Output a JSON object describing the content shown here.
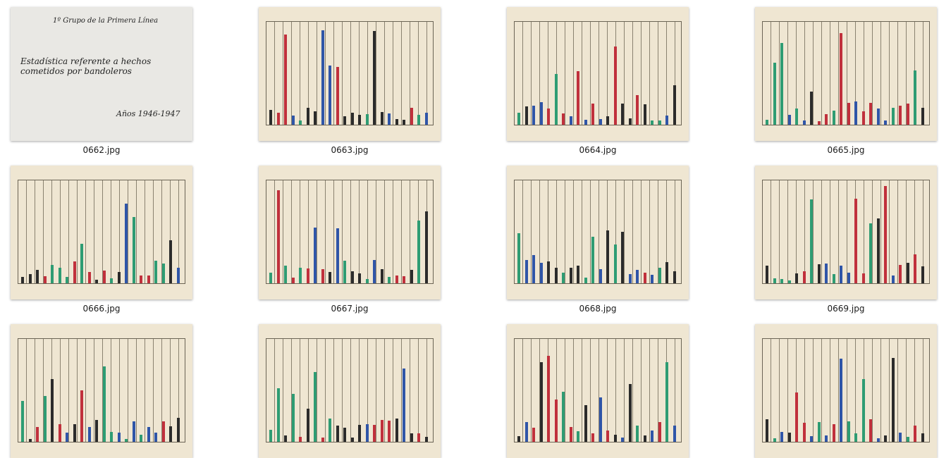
{
  "files": [
    {
      "name": "0662.jpg"
    },
    {
      "name": "0663.jpg"
    },
    {
      "name": "0664.jpg"
    },
    {
      "name": "0665.jpg"
    },
    {
      "name": "0666.jpg"
    },
    {
      "name": "0667.jpg"
    },
    {
      "name": "0668.jpg"
    },
    {
      "name": "0669.jpg"
    }
  ],
  "cover": {
    "heading": "1º Grupo de la Primera Línea",
    "title": "Estadística referente a hechos cometidos por bandoleros",
    "years": "Años 1946-1947"
  }
}
